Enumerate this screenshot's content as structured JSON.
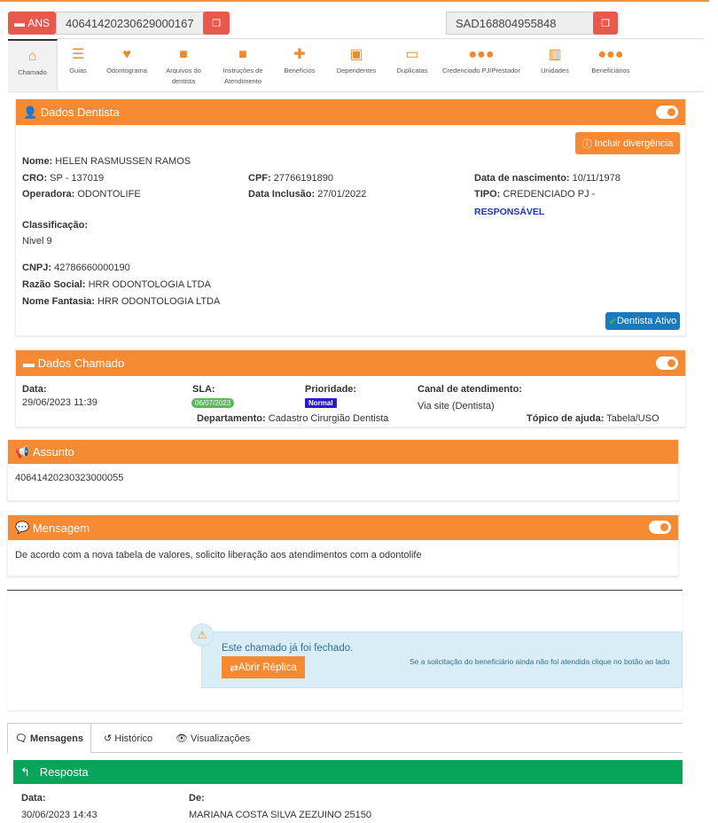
{
  "top": {
    "ans_label": "ANS",
    "protocol": "40641420230629000167",
    "sad": "SAD168804955848"
  },
  "nav": [
    {
      "label": "Chamado",
      "icon": "home-icon"
    },
    {
      "label": "Guias",
      "icon": "list-icon"
    },
    {
      "label": "Odontograma",
      "icon": "tooth-icon"
    },
    {
      "label": "Arquivos do dentista",
      "icon": "folder-icon"
    },
    {
      "label": "Instruções de Atendimento",
      "icon": "folder-icon"
    },
    {
      "label": "Benefícios",
      "icon": "plus-square-icon"
    },
    {
      "label": "Dependentes",
      "icon": "id-badge-icon"
    },
    {
      "label": "Duplicatas",
      "icon": "money-icon"
    },
    {
      "label": "Credenciado PJ/Prestador",
      "icon": "users-icon"
    },
    {
      "label": "Unidades",
      "icon": "building-icon"
    },
    {
      "label": "Beneficiários",
      "icon": "users-icon"
    }
  ],
  "dentista": {
    "title": "Dados Dentista",
    "incluir": "Incluir divergência",
    "nome_l": "Nome:",
    "nome": "HELEN RASMUSSEN RAMOS",
    "cro_l": "CRO:",
    "cro": "SP - 137019",
    "cpf_l": "CPF:",
    "cpf": "27766191890",
    "nasc_l": "Data de nascimento:",
    "nasc": "10/11/1978",
    "oper_l": "Operadora:",
    "oper": "ODONTOLIFE",
    "incl_l": "Data Inclusão:",
    "incl": "27/01/2022",
    "tipo_l": "TIPO:",
    "tipo": "CREDENCIADO PJ -",
    "tipo2": "RESPONSÁVEL",
    "class_l": "Classificação:",
    "class": "Nivel 9",
    "cnpj_l": "CNPJ:",
    "cnpj": "42786660000190",
    "razao_l": "Razão Social:",
    "razao": "HRR ODONTOLOGIA LTDA",
    "fant_l": "Nome Fantasia:",
    "fant": "HRR ODONTOLOGIA LTDA",
    "status": "Dentista Ativo"
  },
  "chamado": {
    "title": "Dados Chamado",
    "data_l": "Data:",
    "data": "29/06/2023 11:39",
    "sla_l": "SLA:",
    "sla": "06/07/2023",
    "prio_l": "Prioridade:",
    "prio": "Normal",
    "canal_l": "Canal de atendimento:",
    "canal": "Via site (Dentista)",
    "dep_l": "Departamento:",
    "dep": "Cadastro Cirurgião Dentista",
    "topico_l": "Tópico de ajuda:",
    "topico": "Tabela/USO"
  },
  "assunto": {
    "title": "Assunto",
    "text": "40641420230323000055"
  },
  "mensagem": {
    "title": "Mensagem",
    "text": "De acordo com a nova tabela de valores, solicito liberação aos atendimentos com a odontolife"
  },
  "alert": {
    "title": "Este chamado já foi fechado.",
    "button": "Abrir Réplica",
    "hint": "Se a solicitação do beneficiário ainda não foi atendida clique no botão ao lado"
  },
  "tabs": [
    "Mensagens",
    "Histórico",
    "Visualizações"
  ],
  "resposta": {
    "title": "Resposta",
    "data_l": "Data:",
    "data": "30/06/2023 14:43",
    "de_l": "De:",
    "de": "MARIANA COSTA SILVA ZEZUINO 25150"
  },
  "colors": {
    "orange": "#f68a33",
    "red": "#e9594b",
    "green": "#06a55a"
  }
}
